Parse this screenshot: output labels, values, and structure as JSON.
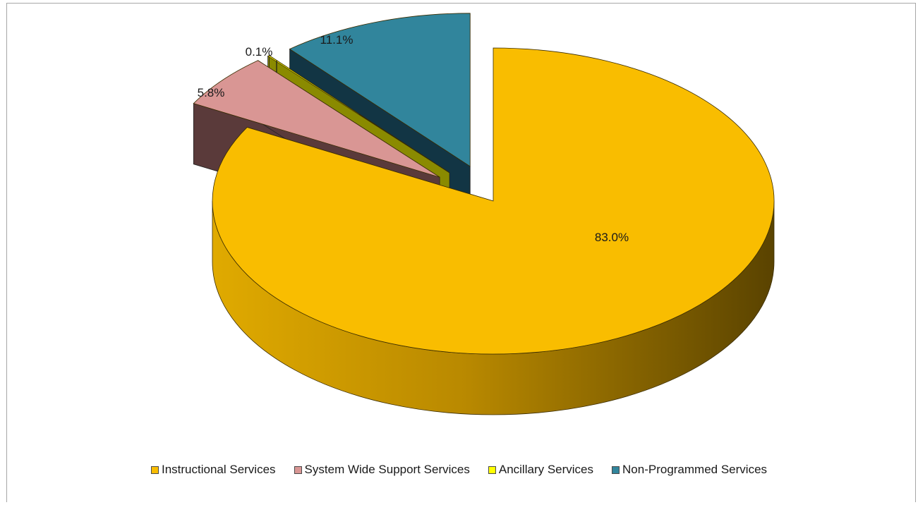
{
  "chart_data": {
    "type": "pie",
    "title": "",
    "categories": [
      "Instructional Services",
      "System Wide Support Services",
      "Ancillary Services",
      "Non-Programmed Services"
    ],
    "values": [
      83.0,
      5.8,
      0.1,
      11.1
    ],
    "data_labels": [
      "83.0%",
      "5.8%",
      "0.1%",
      "11.1%"
    ],
    "colors": [
      "#f9bd00",
      "#d99694",
      "#ffff00",
      "#31859c"
    ],
    "side_colors": [
      "#c79500",
      "#5a3a3a",
      "#8a8a00",
      "#123544"
    ],
    "style": "3d-exploded",
    "legend_position": "bottom"
  }
}
